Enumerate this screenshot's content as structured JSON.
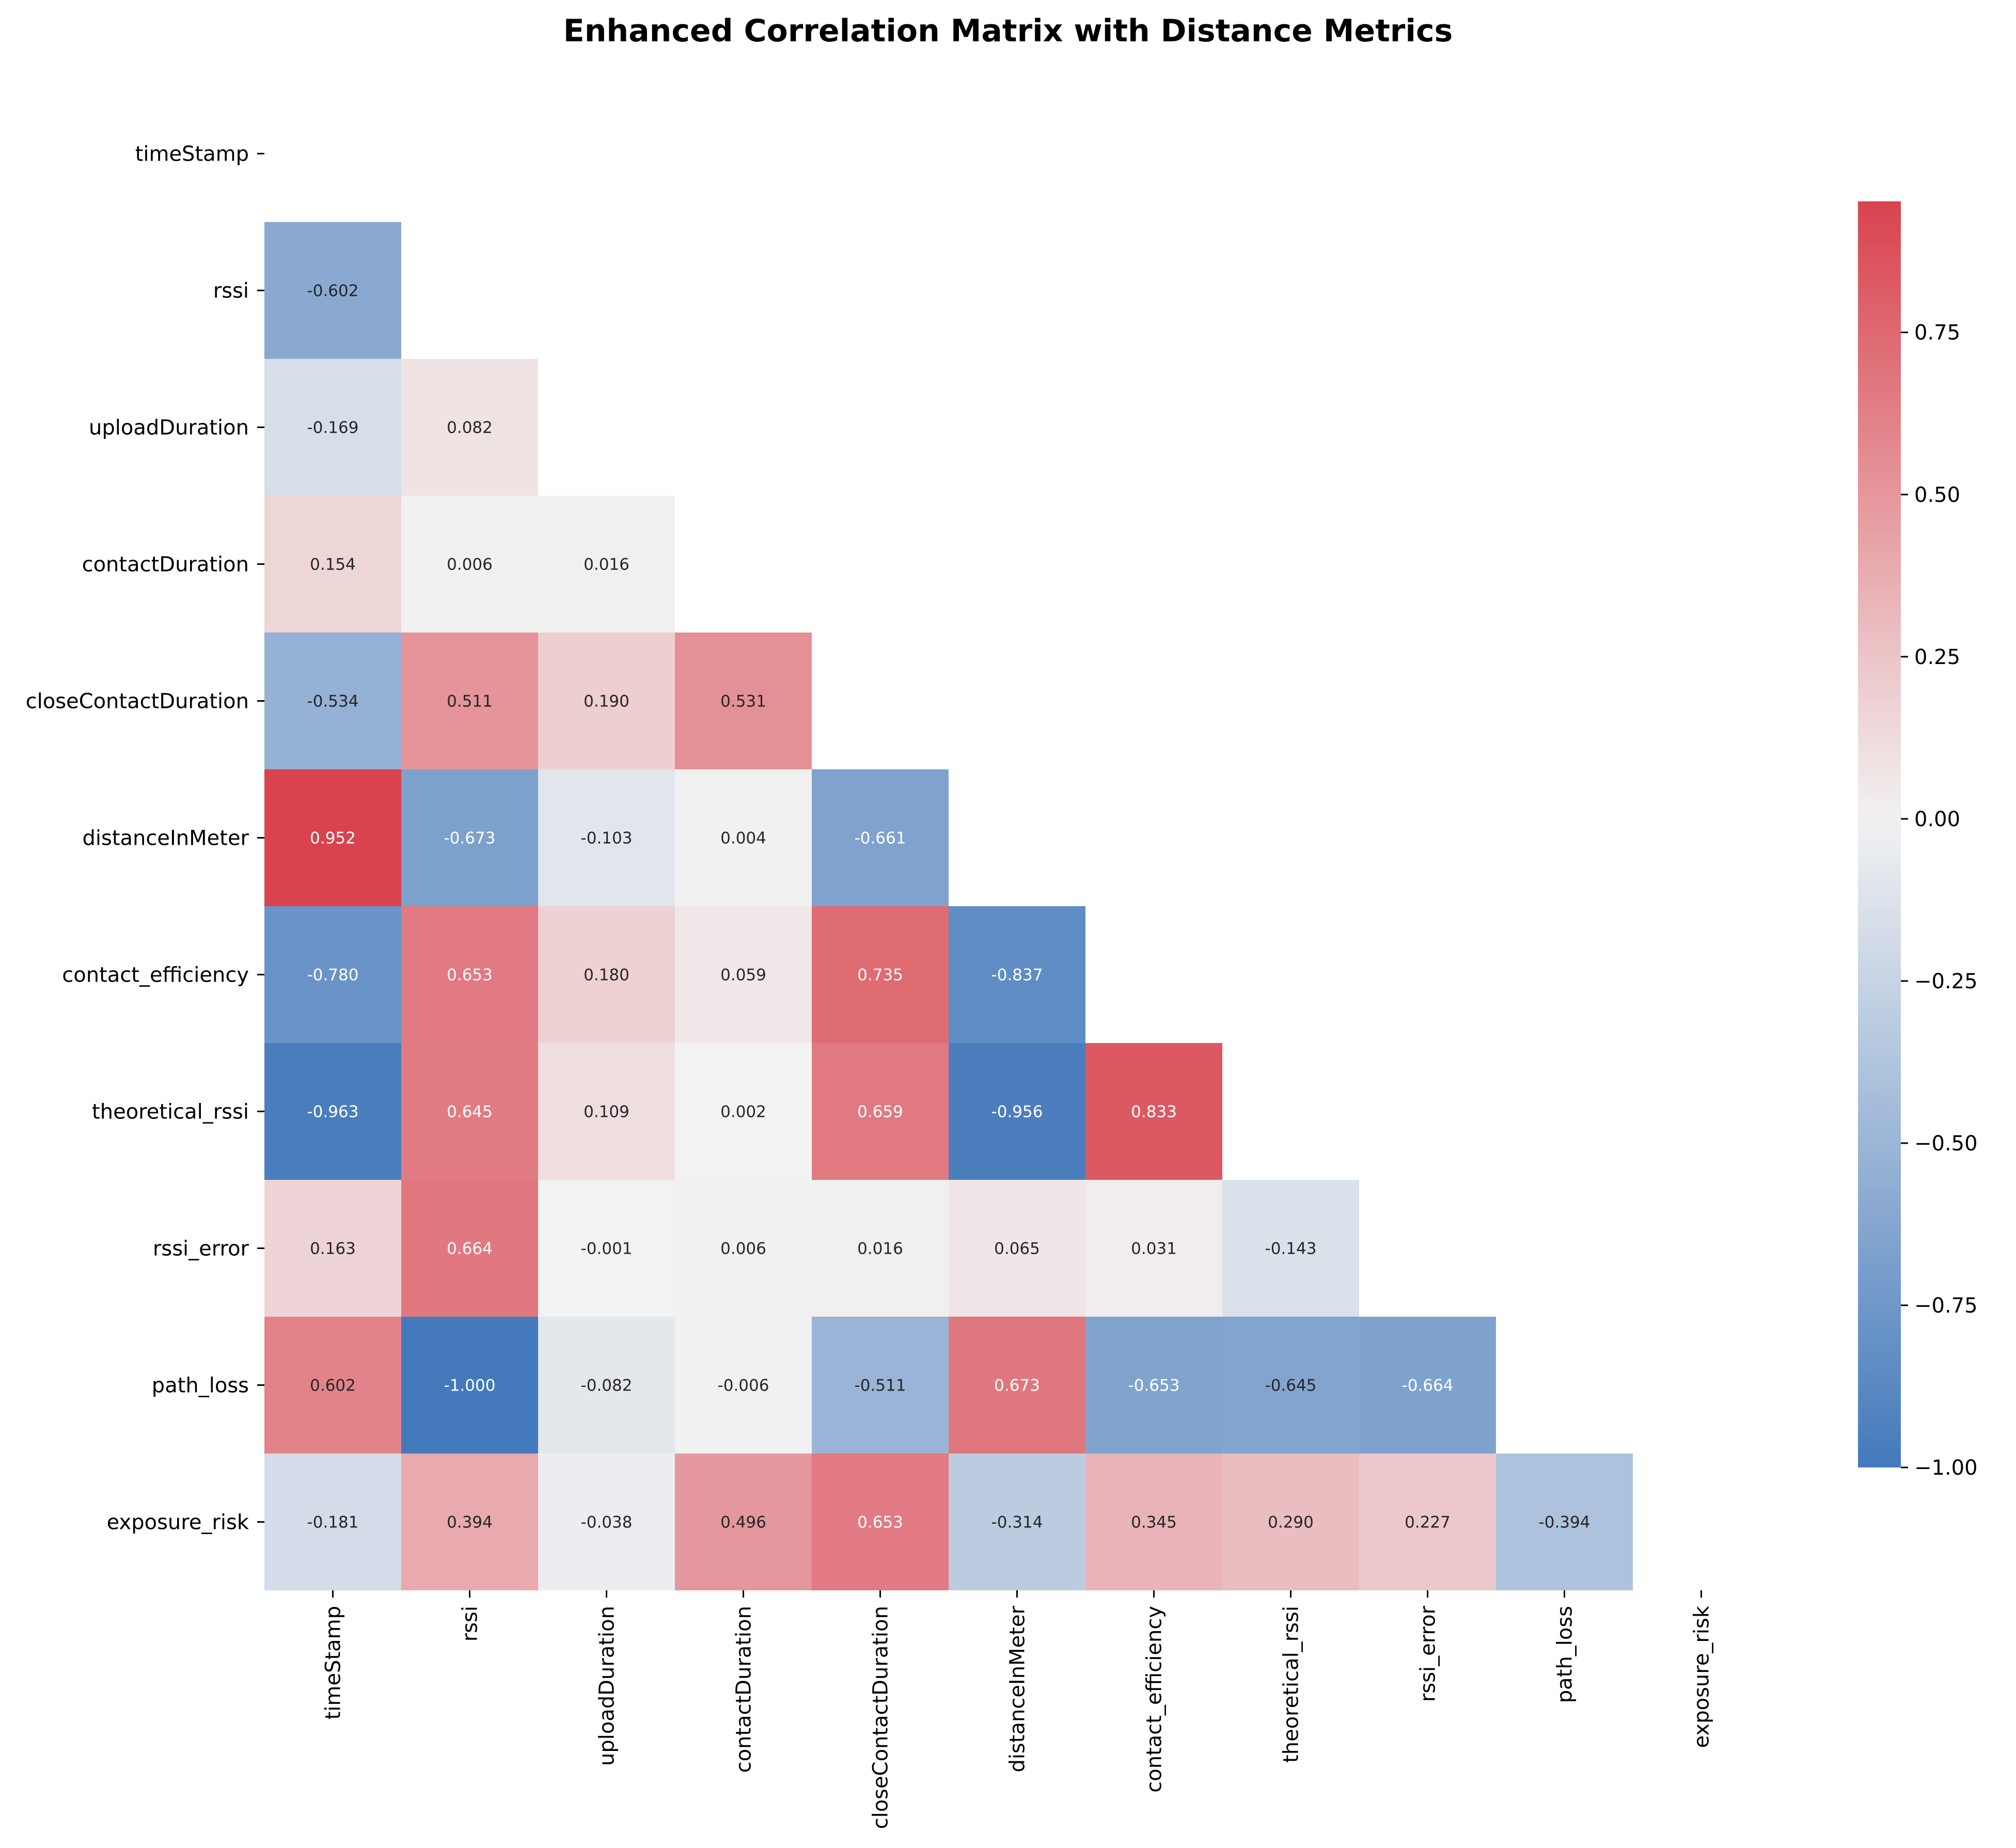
{
  "chart_data": {
    "type": "heatmap",
    "title": "Enhanced Correlation Matrix with Distance Metrics",
    "variables": [
      "timeStamp",
      "rssi",
      "uploadDuration",
      "contactDuration",
      "closeContactDuration",
      "distanceInMeter",
      "contact_efficiency",
      "theoretical_rssi",
      "rssi_error",
      "path_loss",
      "exposure_risk"
    ],
    "mask": "upper triangle including diagonal",
    "matrix": [
      [],
      [
        -0.602
      ],
      [
        -0.169,
        0.082
      ],
      [
        0.154,
        0.006,
        0.016
      ],
      [
        -0.534,
        0.511,
        0.19,
        0.531
      ],
      [
        0.952,
        -0.673,
        -0.103,
        0.004,
        -0.661
      ],
      [
        -0.78,
        0.653,
        0.18,
        0.059,
        0.735,
        -0.837
      ],
      [
        -0.963,
        0.645,
        0.109,
        0.002,
        0.659,
        -0.956,
        0.833
      ],
      [
        0.163,
        0.664,
        -0.001,
        0.006,
        0.016,
        0.065,
        0.031,
        -0.143
      ],
      [
        0.602,
        -1.0,
        -0.082,
        -0.006,
        -0.511,
        0.673,
        -0.653,
        -0.645,
        -0.664
      ],
      [
        -0.181,
        0.394,
        -0.038,
        0.496,
        0.653,
        -0.314,
        0.345,
        0.29,
        0.227,
        -0.394
      ]
    ],
    "annotation_format": "3 decimals",
    "colormap": {
      "low": "#4479bb",
      "mid": "#f2f2f2",
      "high": "#d9434e"
    },
    "colorbar": {
      "vmin": -1.0,
      "vmax": 0.952,
      "ticks": [
        0.75,
        0.5,
        0.25,
        0.0,
        -0.25,
        -0.5,
        -0.75,
        -1.0
      ],
      "tick_labels": [
        "0.75",
        "0.50",
        "0.25",
        "0.00",
        "−0.25",
        "−0.50",
        "−0.75",
        "−1.00"
      ],
      "position": "right"
    },
    "grid": false
  }
}
